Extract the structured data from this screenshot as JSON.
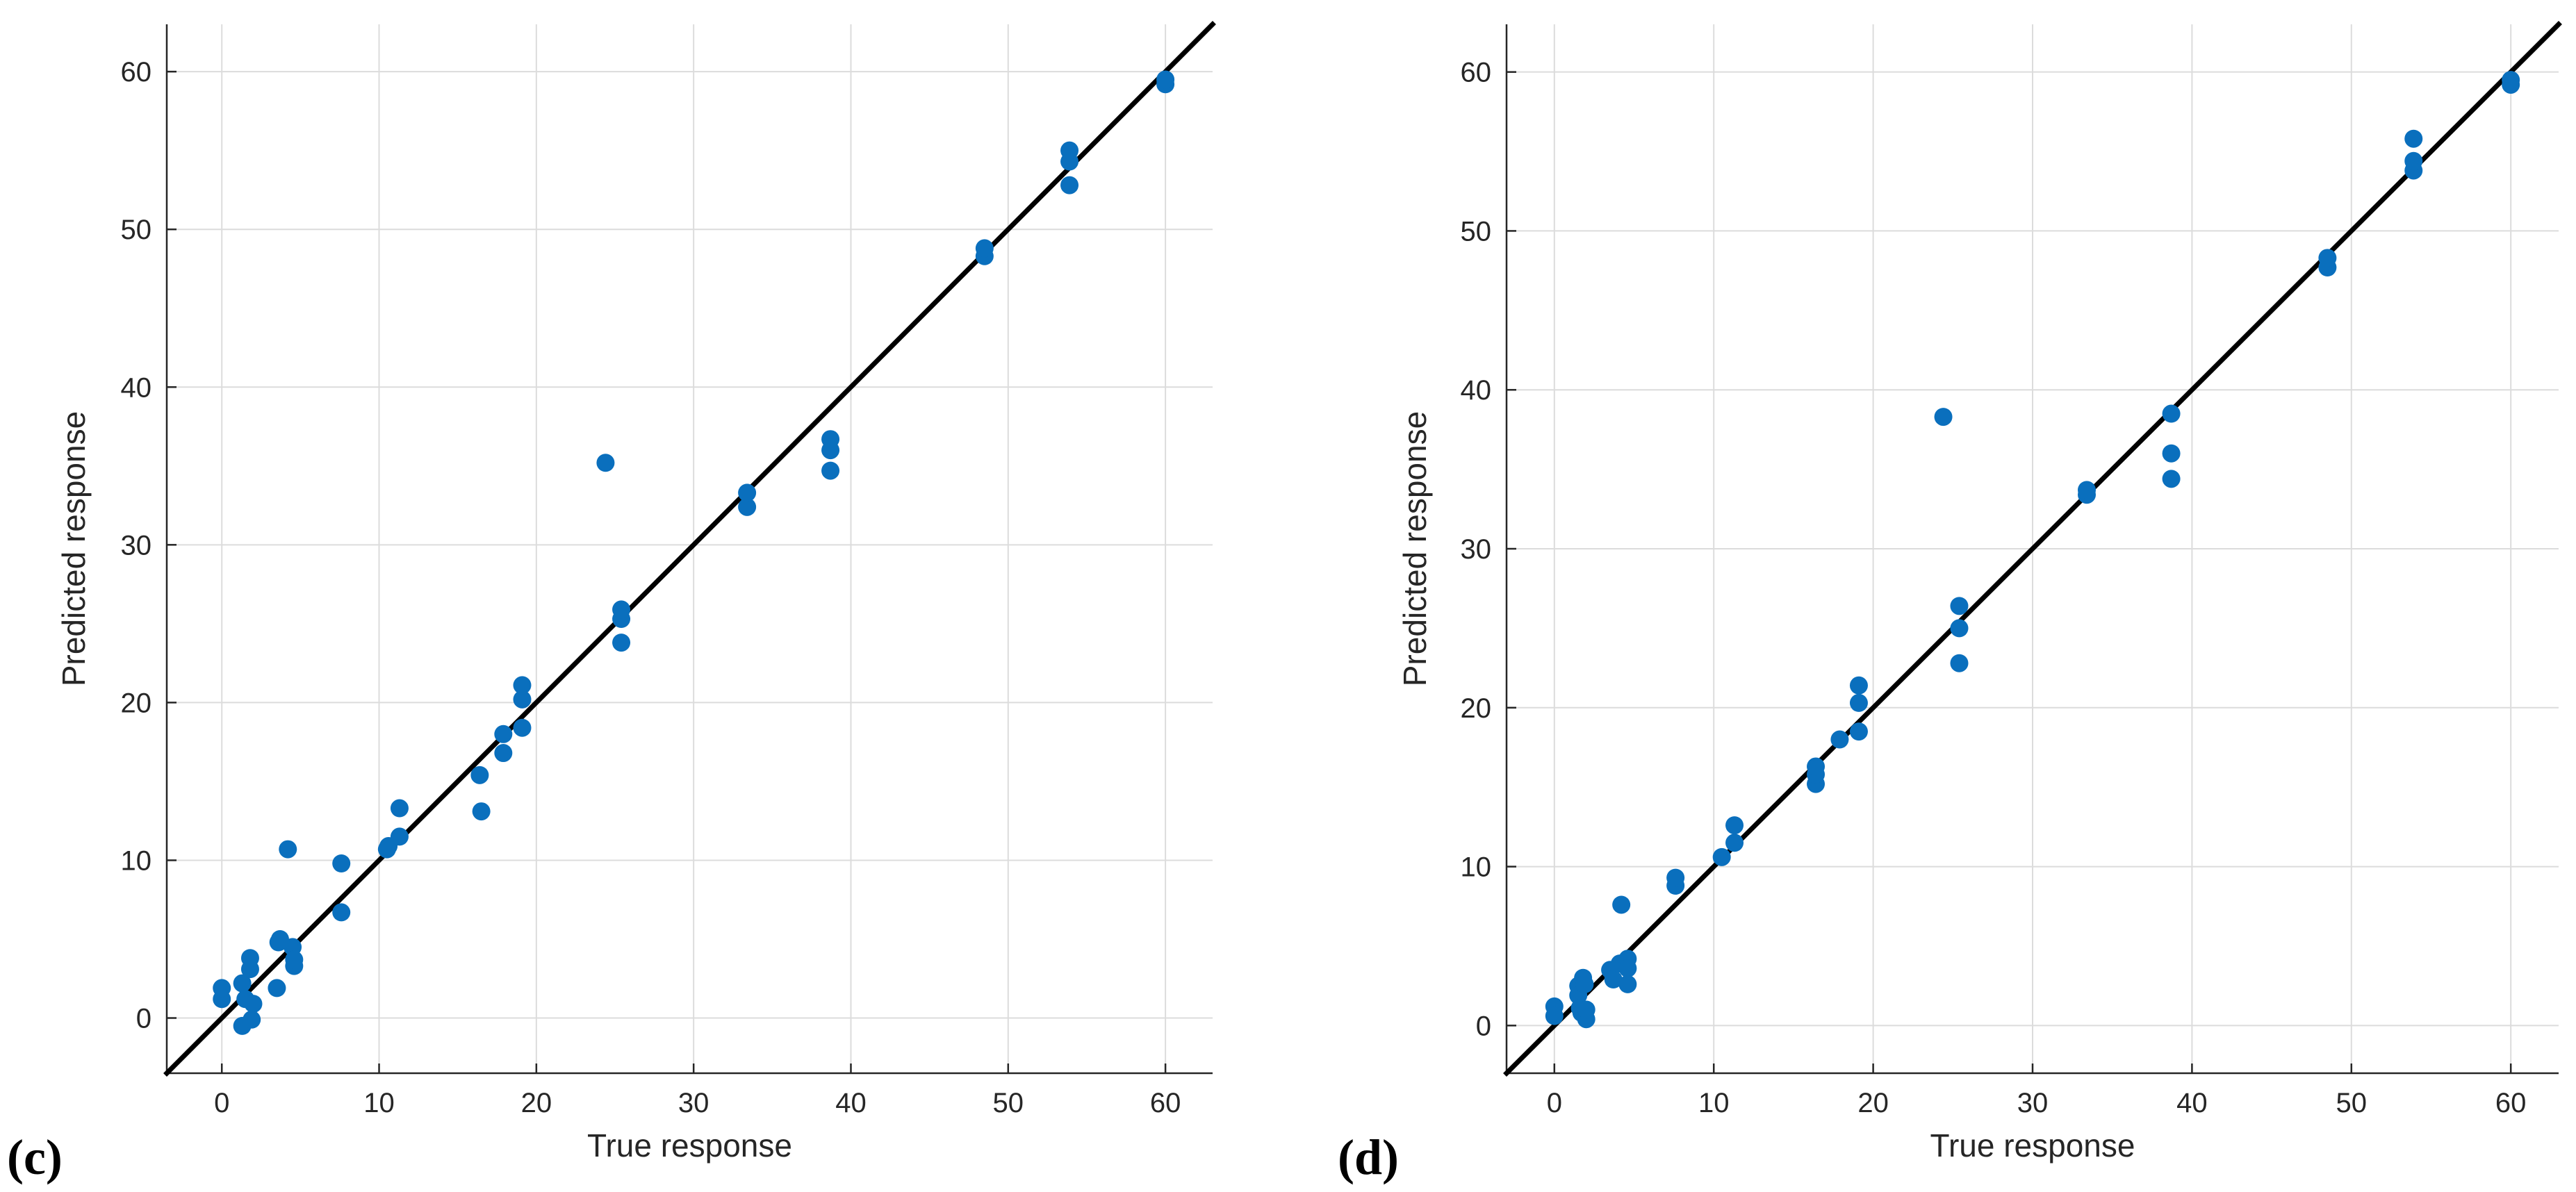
{
  "colors": {
    "points": "#0a6fbd",
    "reference_line": "#000000",
    "grid": "#dcdcdc"
  },
  "chart_data": [
    {
      "type": "scatter",
      "panel_label": "(c)",
      "xlabel": "True response",
      "ylabel": "Predicted response",
      "xlim": [
        -3.5,
        63
      ],
      "ylim": [
        -3.5,
        63
      ],
      "xticks": [
        0,
        10,
        20,
        30,
        40,
        50,
        60
      ],
      "yticks": [
        0,
        10,
        20,
        30,
        40,
        50,
        60
      ],
      "grid": true,
      "reference_line": "y = x",
      "points": [
        [
          0,
          1.2
        ],
        [
          0,
          1.9
        ],
        [
          1.3,
          2.2
        ],
        [
          1.3,
          -0.5
        ],
        [
          1.5,
          1.2
        ],
        [
          1.8,
          3.1
        ],
        [
          1.8,
          3.8
        ],
        [
          1.9,
          -0.1
        ],
        [
          2,
          0.9
        ],
        [
          3.5,
          1.9
        ],
        [
          3.6,
          4.8
        ],
        [
          3.7,
          5.0
        ],
        [
          4.2,
          10.7
        ],
        [
          4.5,
          4.5
        ],
        [
          4.6,
          3.3
        ],
        [
          4.6,
          3.7
        ],
        [
          7.6,
          9.8
        ],
        [
          7.6,
          6.7
        ],
        [
          10.5,
          10.7
        ],
        [
          10.6,
          10.9
        ],
        [
          11.3,
          11.5
        ],
        [
          11.3,
          13.3
        ],
        [
          16.4,
          15.4
        ],
        [
          16.5,
          13.1
        ],
        [
          17.9,
          16.8
        ],
        [
          17.9,
          18.0
        ],
        [
          19.1,
          18.4
        ],
        [
          19.1,
          20.2
        ],
        [
          19.1,
          21.1
        ],
        [
          24.4,
          35.2
        ],
        [
          25.4,
          23.8
        ],
        [
          25.4,
          25.3
        ],
        [
          25.4,
          25.9
        ],
        [
          33.4,
          32.4
        ],
        [
          33.4,
          33.3
        ],
        [
          38.7,
          34.7
        ],
        [
          38.7,
          36.0
        ],
        [
          38.7,
          36.7
        ],
        [
          48.5,
          48.3
        ],
        [
          48.5,
          48.8
        ],
        [
          53.9,
          52.8
        ],
        [
          53.9,
          54.3
        ],
        [
          53.9,
          55.0
        ],
        [
          60,
          59.2
        ],
        [
          60,
          59.5
        ]
      ]
    },
    {
      "type": "scatter",
      "panel_label": "(d)",
      "xlabel": "True response",
      "ylabel": "Predicted response",
      "xlim": [
        -3,
        63
      ],
      "ylim": [
        -3,
        63
      ],
      "xticks": [
        0,
        10,
        20,
        30,
        40,
        50,
        60
      ],
      "yticks": [
        0,
        10,
        20,
        30,
        40,
        50,
        60
      ],
      "grid": true,
      "reference_line": "y = x",
      "points": [
        [
          0,
          1.2
        ],
        [
          0,
          0.6
        ],
        [
          1.5,
          2.5
        ],
        [
          1.5,
          1.9
        ],
        [
          1.6,
          1.1
        ],
        [
          1.7,
          0.8
        ],
        [
          1.8,
          3.0
        ],
        [
          1.9,
          2.6
        ],
        [
          2,
          0.4
        ],
        [
          2,
          1.0
        ],
        [
          3.5,
          3.5
        ],
        [
          3.7,
          2.9
        ],
        [
          4.1,
          3.9
        ],
        [
          4.2,
          7.6
        ],
        [
          4.6,
          4.2
        ],
        [
          4.6,
          3.6
        ],
        [
          4.6,
          2.6
        ],
        [
          7.6,
          8.8
        ],
        [
          7.6,
          9.3
        ],
        [
          10.5,
          10.6
        ],
        [
          11.3,
          11.5
        ],
        [
          11.3,
          12.6
        ],
        [
          16.4,
          15.2
        ],
        [
          16.4,
          15.8
        ],
        [
          16.4,
          16.3
        ],
        [
          17.9,
          18.0
        ],
        [
          19.1,
          18.5
        ],
        [
          19.1,
          20.3
        ],
        [
          19.1,
          21.4
        ],
        [
          24.4,
          38.3
        ],
        [
          25.4,
          22.8
        ],
        [
          25.4,
          25.0
        ],
        [
          25.4,
          26.4
        ],
        [
          33.4,
          33.4
        ],
        [
          33.4,
          33.7
        ],
        [
          38.7,
          34.4
        ],
        [
          38.7,
          36.0
        ],
        [
          38.7,
          38.5
        ],
        [
          48.5,
          47.7
        ],
        [
          48.5,
          48.3
        ],
        [
          53.9,
          53.8
        ],
        [
          53.9,
          54.4
        ],
        [
          53.9,
          55.8
        ],
        [
          60,
          59.2
        ],
        [
          60,
          59.5
        ]
      ]
    }
  ]
}
